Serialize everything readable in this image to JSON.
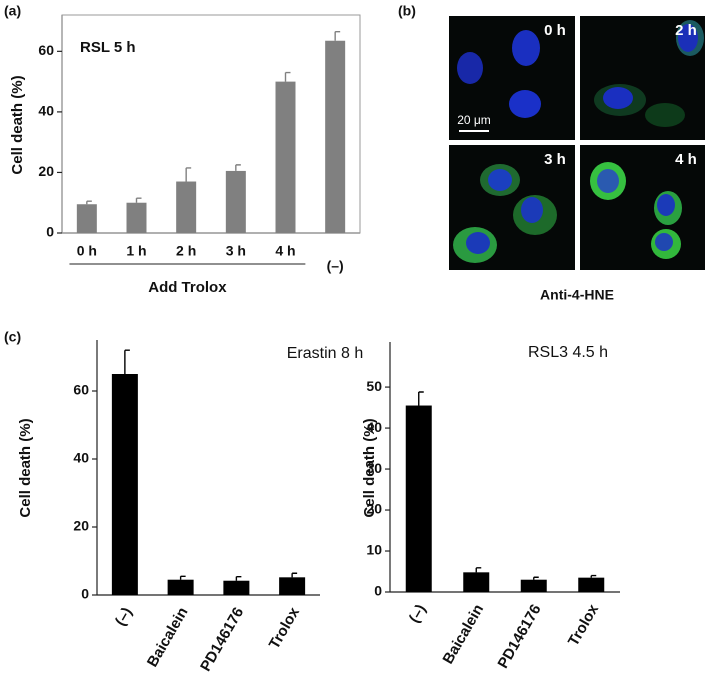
{
  "panel_labels": [
    "(a)",
    "(b)",
    "(c)"
  ],
  "micrograph": {
    "frames": [
      "0 h",
      "2 h",
      "3 h",
      "4 h"
    ],
    "scale_bar": "20 μm",
    "caption": "Anti-4-HNE"
  },
  "chart_data": [
    {
      "type": "bar",
      "title": "RSL 5 h",
      "ylabel": "Cell death  (%)",
      "categories": [
        "0 h",
        "1 h",
        "2 h",
        "3 h",
        "4 h",
        "(–)"
      ],
      "values": [
        9.5,
        10,
        17,
        20.5,
        50,
        63.5
      ],
      "errors": [
        1,
        1.5,
        4.5,
        2,
        3,
        3
      ],
      "group_label": "Add Trolox",
      "color": "#808080",
      "ylim": [
        0,
        72
      ],
      "yticks": [
        0,
        20,
        40,
        60
      ]
    },
    {
      "type": "bar",
      "title": "Erastin  8 h",
      "ylabel": "Cell death  (%)",
      "categories": [
        "(–)",
        "Baicalein",
        "PD146176",
        "Trolox"
      ],
      "values": [
        65,
        4.5,
        4.2,
        5.2
      ],
      "errors": [
        7,
        1,
        1.2,
        1.2
      ],
      "color": "#000000",
      "ylim": [
        0,
        75
      ],
      "yticks": [
        0,
        20,
        40,
        60
      ]
    },
    {
      "type": "bar",
      "title": "RSL3  4.5 h",
      "ylabel": "Cell death  (%)",
      "categories": [
        "(–)",
        "Baicalein",
        "PD146176",
        "Trolox"
      ],
      "values": [
        45.5,
        4.8,
        3,
        3.5
      ],
      "errors": [
        3.3,
        1.1,
        0.6,
        0.5
      ],
      "color": "#000000",
      "ylim": [
        0,
        61
      ],
      "yticks": [
        0,
        10,
        20,
        30,
        40,
        50
      ]
    }
  ]
}
